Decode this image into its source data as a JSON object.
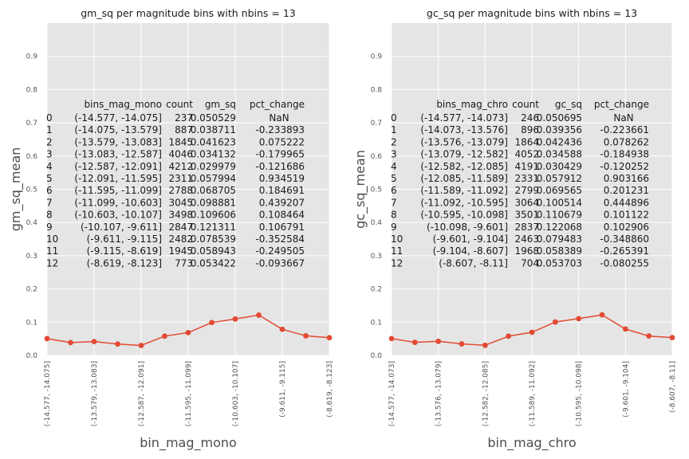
{
  "chart_data": [
    {
      "type": "line",
      "title": "gm_sq per magnitude bins with nbins = 13",
      "xlabel": "bin_mag_mono",
      "ylabel": "gm_sq_mean",
      "ylim": [
        0,
        1.0
      ],
      "yticks": [
        "0.0",
        "0.1",
        "0.2",
        "0.3",
        "0.4",
        "0.5",
        "0.6",
        "0.7",
        "0.8",
        "0.9"
      ],
      "grid": true,
      "categories": [
        "(-14.577, -14.075]",
        "(-14.075, -13.579]",
        "(-13.579, -13.083]",
        "(-13.083, -12.587]",
        "(-12.587, -12.091]",
        "(-12.091, -11.595]",
        "(-11.595, -11.099]",
        "(-11.099, -10.603]",
        "(-10.603, -10.107]",
        "(-10.107, -9.611]",
        "(-9.611, -9.115]",
        "(-9.115, -8.619]",
        "(-8.619, -8.123]"
      ],
      "xtick_labels": [
        "(-14.577, -14.075]",
        "(-13.579, -13.083]",
        "(-12.587, -12.091]",
        "(-11.595, -11.099]",
        "(-10.603, -10.107]",
        "(-9.611, -9.115]",
        "(-8.619, -8.123]"
      ],
      "values": [
        0.050529,
        0.038711,
        0.041623,
        0.034132,
        0.029979,
        0.057994,
        0.068705,
        0.098881,
        0.109606,
        0.121311,
        0.078539,
        0.058943,
        0.053422
      ],
      "table": {
        "header": [
          "bins_mag_mono",
          "count",
          "gm_sq",
          "pct_change"
        ],
        "rows": [
          [
            "0",
            "(-14.577, -14.075]",
            "237",
            "0.050529",
            "NaN"
          ],
          [
            "1",
            "(-14.075, -13.579]",
            "887",
            "0.038711",
            "-0.233893"
          ],
          [
            "2",
            "(-13.579, -13.083]",
            "1845",
            "0.041623",
            "0.075222"
          ],
          [
            "3",
            "(-13.083, -12.587]",
            "4046",
            "0.034132",
            "-0.179965"
          ],
          [
            "4",
            "(-12.587, -12.091]",
            "4212",
            "0.029979",
            "-0.121686"
          ],
          [
            "5",
            "(-12.091, -11.595]",
            "2311",
            "0.057994",
            "0.934519"
          ],
          [
            "6",
            "(-11.595, -11.099]",
            "2788",
            "0.068705",
            "0.184691"
          ],
          [
            "7",
            "(-11.099, -10.603]",
            "3045",
            "0.098881",
            "0.439207"
          ],
          [
            "8",
            "(-10.603, -10.107]",
            "3498",
            "0.109606",
            "0.108464"
          ],
          [
            "9",
            "(-10.107, -9.611]",
            "2847",
            "0.121311",
            "0.106791"
          ],
          [
            "10",
            "(-9.611, -9.115]",
            "2482",
            "0.078539",
            "-0.352584"
          ],
          [
            "11",
            "(-9.115, -8.619]",
            "1945",
            "0.058943",
            "-0.249505"
          ],
          [
            "12",
            "(-8.619, -8.123]",
            "773",
            "0.053422",
            "-0.093667"
          ]
        ]
      }
    },
    {
      "type": "line",
      "title": "gc_sq per magnitude bins with nbins = 13",
      "xlabel": "bin_mag_chro",
      "ylabel": "gc_sq_mean",
      "ylim": [
        0,
        1.0
      ],
      "yticks": [
        "0.0",
        "0.1",
        "0.2",
        "0.3",
        "0.4",
        "0.5",
        "0.6",
        "0.7",
        "0.8",
        "0.9"
      ],
      "grid": true,
      "categories": [
        "(-14.577, -14.073]",
        "(-14.073, -13.576]",
        "(-13.576, -13.079]",
        "(-13.079, -12.582]",
        "(-12.582, -12.085]",
        "(-12.085, -11.589]",
        "(-11.589, -11.092]",
        "(-11.092, -10.595]",
        "(-10.595, -10.098]",
        "(-10.098, -9.601]",
        "(-9.601, -9.104]",
        "(-9.104, -8.607]",
        "(-8.607, -8.11]"
      ],
      "xtick_labels": [
        "(-14.577, -14.073]",
        "(-13.576, -13.079]",
        "(-12.582, -12.085]",
        "(-11.589, -11.092]",
        "(-10.595, -10.098]",
        "(-9.601, -9.104]",
        "(-8.607, -8.11]"
      ],
      "values": [
        0.050695,
        0.039356,
        0.042436,
        0.034588,
        0.030429,
        0.057912,
        0.069565,
        0.100514,
        0.110679,
        0.122068,
        0.079483,
        0.058389,
        0.053703
      ],
      "table": {
        "header": [
          "bins_mag_chro",
          "count",
          "gc_sq",
          "pct_change"
        ],
        "rows": [
          [
            "0",
            "(-14.577, -14.073]",
            "246",
            "0.050695",
            "NaN"
          ],
          [
            "1",
            "(-14.073, -13.576]",
            "896",
            "0.039356",
            "-0.223661"
          ],
          [
            "2",
            "(-13.576, -13.079]",
            "1864",
            "0.042436",
            "0.078262"
          ],
          [
            "3",
            "(-13.079, -12.582]",
            "4052",
            "0.034588",
            "-0.184938"
          ],
          [
            "4",
            "(-12.582, -12.085]",
            "4191",
            "0.030429",
            "-0.120252"
          ],
          [
            "5",
            "(-12.085, -11.589]",
            "2331",
            "0.057912",
            "0.903166"
          ],
          [
            "6",
            "(-11.589, -11.092]",
            "2799",
            "0.069565",
            "0.201231"
          ],
          [
            "7",
            "(-11.092, -10.595]",
            "3064",
            "0.100514",
            "0.444896"
          ],
          [
            "8",
            "(-10.595, -10.098]",
            "3501",
            "0.110679",
            "0.101122"
          ],
          [
            "9",
            "(-10.098, -9.601]",
            "2837",
            "0.122068",
            "0.102906"
          ],
          [
            "10",
            "(-9.601, -9.104]",
            "2463",
            "0.079483",
            "-0.348860"
          ],
          [
            "11",
            "(-9.104, -8.607]",
            "1968",
            "0.058389",
            "-0.265391"
          ],
          [
            "12",
            "(-8.607, -8.11]",
            "704",
            "0.053703",
            "-0.080255"
          ]
        ]
      }
    }
  ]
}
